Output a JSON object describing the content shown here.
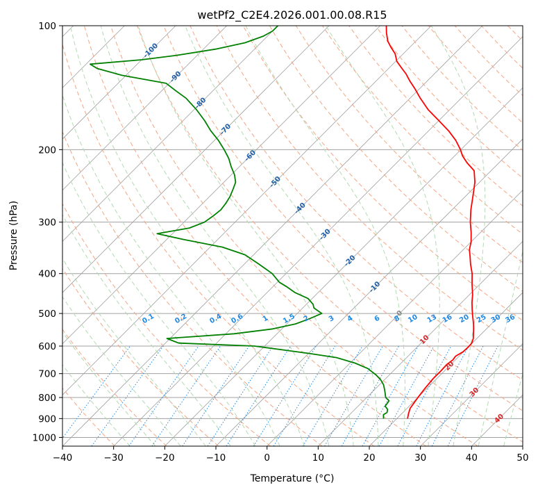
{
  "chart_data": {
    "type": "line",
    "title": "wetPf2_C2E4.2026.001.00.08.R15",
    "xlabel": "Temperature (°C)",
    "ylabel": "Pressure (hPa)",
    "xlim": [
      -40,
      50
    ],
    "ylim_hpa": [
      1050,
      100
    ],
    "y_scale": "log",
    "x_ticks": [
      "−40",
      "−30",
      "−20",
      "−10",
      "0",
      "10",
      "20",
      "30",
      "40",
      "50"
    ],
    "x_tick_values": [
      -40,
      -30,
      -20,
      -10,
      0,
      10,
      20,
      30,
      40,
      50
    ],
    "y_ticks": [
      "100",
      "200",
      "300",
      "400",
      "500",
      "600",
      "700",
      "800",
      "900",
      "1000"
    ],
    "y_tick_values": [
      100,
      200,
      300,
      400,
      500,
      600,
      700,
      800,
      900,
      1000
    ],
    "grid": true,
    "skew_deg": 45,
    "series": [
      {
        "role": "temperature",
        "color": "#ff0000",
        "points": [
          [
            22.1,
            900
          ],
          [
            21.3,
            875
          ],
          [
            20.6,
            850
          ],
          [
            20.0,
            800
          ],
          [
            19.6,
            760
          ],
          [
            19.3,
            720
          ],
          [
            19.3,
            690
          ],
          [
            19.2,
            665
          ],
          [
            19.5,
            648
          ],
          [
            19.3,
            635
          ],
          [
            19.9,
            620
          ],
          [
            20.0,
            605
          ],
          [
            19.9,
            590
          ],
          [
            19.3,
            575
          ],
          [
            18.4,
            560
          ],
          [
            17.5,
            545
          ],
          [
            16.5,
            530
          ],
          [
            15.0,
            510
          ],
          [
            13.5,
            490
          ],
          [
            12.0,
            470
          ],
          [
            10.6,
            450
          ],
          [
            8.5,
            425
          ],
          [
            6.4,
            400
          ],
          [
            4.3,
            380
          ],
          [
            2.8,
            365
          ],
          [
            1.2,
            350
          ],
          [
            0.0,
            335
          ],
          [
            -1.8,
            318
          ],
          [
            -4.0,
            300
          ],
          [
            -6.3,
            280
          ],
          [
            -8.5,
            260
          ],
          [
            -10.9,
            240
          ],
          [
            -13.3,
            225
          ],
          [
            -16.3,
            215
          ],
          [
            -18.5,
            207
          ],
          [
            -20.1,
            200
          ],
          [
            -22.8,
            190
          ],
          [
            -26.1,
            180
          ],
          [
            -30.0,
            170
          ],
          [
            -34.2,
            160
          ],
          [
            -38.0,
            150
          ],
          [
            -41.0,
            142
          ],
          [
            -43.5,
            136
          ],
          [
            -45.5,
            131
          ],
          [
            -47.4,
            127
          ],
          [
            -49.8,
            122
          ],
          [
            -51.6,
            117
          ],
          [
            -53.6,
            113
          ],
          [
            -55.5,
            109
          ],
          [
            -57.4,
            104
          ],
          [
            -58.8,
            100
          ]
        ]
      },
      {
        "role": "dewpoint",
        "color": "#008000",
        "points": [
          [
            17.4,
            900
          ],
          [
            16.6,
            880
          ],
          [
            16.9,
            870
          ],
          [
            16.4,
            855
          ],
          [
            15.3,
            840
          ],
          [
            15.0,
            815
          ],
          [
            13.7,
            800
          ],
          [
            12.2,
            770
          ],
          [
            10.8,
            745
          ],
          [
            9.3,
            725
          ],
          [
            7.4,
            705
          ],
          [
            4.5,
            680
          ],
          [
            1.0,
            660
          ],
          [
            -3.7,
            640
          ],
          [
            -10.0,
            625
          ],
          [
            -14.7,
            615
          ],
          [
            -22.0,
            600
          ],
          [
            -37.4,
            590
          ],
          [
            -40.6,
            575
          ],
          [
            -28.4,
            560
          ],
          [
            -21.8,
            545
          ],
          [
            -18.3,
            530
          ],
          [
            -16.6,
            515
          ],
          [
            -15.2,
            500
          ],
          [
            -17.8,
            485
          ],
          [
            -18.7,
            475
          ],
          [
            -20.8,
            460
          ],
          [
            -24.5,
            445
          ],
          [
            -27.4,
            430
          ],
          [
            -29.6,
            420
          ],
          [
            -32.7,
            400
          ],
          [
            -37.0,
            380
          ],
          [
            -41.7,
            360
          ],
          [
            -47.6,
            345
          ],
          [
            -57.0,
            330
          ],
          [
            -63.0,
            320
          ],
          [
            -57.8,
            310
          ],
          [
            -56.0,
            300
          ],
          [
            -55.5,
            290
          ],
          [
            -55.2,
            280
          ],
          [
            -55.5,
            270
          ],
          [
            -56.0,
            260
          ],
          [
            -56.8,
            250
          ],
          [
            -57.7,
            240
          ],
          [
            -59.4,
            230
          ],
          [
            -61.6,
            220
          ],
          [
            -63.7,
            210
          ],
          [
            -66.3,
            200
          ],
          [
            -69.2,
            190
          ],
          [
            -72.6,
            180
          ],
          [
            -75.8,
            170
          ],
          [
            -79.5,
            160
          ],
          [
            -83.8,
            150
          ],
          [
            -87.2,
            144
          ],
          [
            -90.6,
            138
          ],
          [
            -100.8,
            132
          ],
          [
            -107.0,
            127
          ],
          [
            -109.2,
            124
          ],
          [
            -100.0,
            121
          ],
          [
            -94.0,
            118
          ],
          [
            -87.6,
            114
          ],
          [
            -83.1,
            110
          ],
          [
            -80.8,
            106
          ],
          [
            -80.0,
            103
          ],
          [
            -80.0,
            100
          ]
        ]
      }
    ],
    "isotherm_labels": [
      "-100",
      "-90",
      "-80",
      "-70",
      "-60",
      "-50",
      "-40",
      "-30",
      "-20",
      "-10",
      "0",
      "10",
      "20",
      "30",
      "40"
    ],
    "isotherm_label_values": [
      -100,
      -90,
      -80,
      -70,
      -60,
      -50,
      -40,
      -30,
      -20,
      -10,
      0,
      10,
      20,
      30,
      40
    ],
    "mixing_ratio_labels": [
      "0.1",
      "0.2",
      "0.4",
      "0.6",
      "1",
      "1.5",
      "2",
      "3",
      "4",
      "6",
      "8",
      "10",
      "13",
      "16",
      "20",
      "25",
      "30",
      "36"
    ],
    "mixing_ratio_values": [
      0.1,
      0.2,
      0.4,
      0.6,
      1,
      1.5,
      2,
      3,
      4,
      6,
      8,
      10,
      13,
      16,
      20,
      25,
      30,
      36
    ]
  },
  "colors": {
    "temperature": "#ff0000",
    "dewpoint": "#008000",
    "isotherm_grid": "#a0a0a0",
    "dry_adiabat": "#f4a582",
    "moist_adiabat": "#b2d9b2",
    "mixing_ratio": "#1e88e5",
    "iso_cold_label": "#1f5fa8",
    "iso_zero_label": "#888888",
    "iso_warm_label": "#d62728",
    "background": "#ffffff"
  }
}
